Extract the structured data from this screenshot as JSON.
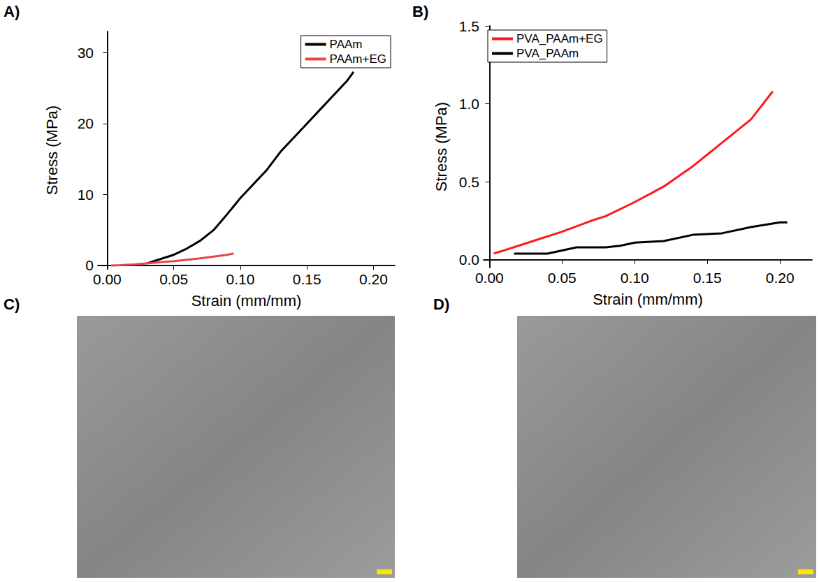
{
  "chart_data": [
    {
      "type": "line",
      "title": "A)",
      "x_label": "Strain (mm/mm)",
      "y_label": "Stress (MPa)",
      "xlim": [
        -0.007,
        0.216
      ],
      "ylim": [
        -0.5,
        33
      ],
      "xticks": [
        {
          "value": 0,
          "label": "0.00"
        },
        {
          "value": 0.05,
          "label": "0.05"
        },
        {
          "value": 0.1,
          "label": "0.10"
        },
        {
          "value": 0.15,
          "label": "0.15"
        },
        {
          "value": 0.2,
          "label": "0.20"
        }
      ],
      "yticks": [
        0,
        10,
        20,
        30
      ],
      "legend": "upper right",
      "series": [
        {
          "name": "PAAm",
          "color": "#000000",
          "x": [
            0.03,
            0.04,
            0.05,
            0.06,
            0.07,
            0.08,
            0.09,
            0.1,
            0.11,
            0.12,
            0.13,
            0.14,
            0.15,
            0.16,
            0.17,
            0.18,
            0.185
          ],
          "values": [
            0.3,
            0.9,
            1.5,
            2.4,
            3.5,
            5.0,
            7.2,
            9.5,
            11.5,
            13.5,
            16.0,
            18.0,
            20.0,
            22.0,
            24.0,
            26.0,
            27.3
          ]
        },
        {
          "name": "PAAm+EG",
          "color": "#e84545",
          "x": [
            0.003,
            0.01,
            0.02,
            0.03,
            0.04,
            0.05,
            0.06,
            0.07,
            0.08,
            0.09,
            0.095
          ],
          "values": [
            0.0,
            0.05,
            0.15,
            0.3,
            0.45,
            0.6,
            0.8,
            1.0,
            1.25,
            1.5,
            1.7
          ]
        }
      ]
    },
    {
      "type": "line",
      "title": "B)",
      "x_label": "Strain (mm/mm)",
      "y_label": "Stress (MPa)",
      "xlim": [
        -0.004,
        0.222
      ],
      "ylim": [
        -0.05,
        1.5
      ],
      "xticks": [
        {
          "value": 0,
          "label": "0.00"
        },
        {
          "value": 0.05,
          "label": "0.05"
        },
        {
          "value": 0.1,
          "label": "0.10"
        },
        {
          "value": 0.15,
          "label": "0.15"
        },
        {
          "value": 0.2,
          "label": "0.20"
        }
      ],
      "yticks": [
        {
          "value": 0,
          "label": "0.0"
        },
        {
          "value": 0.5,
          "label": "0.5"
        },
        {
          "value": 1,
          "label": "1.0"
        },
        {
          "value": 1.5,
          "label": "1.5"
        }
      ],
      "legend": "upper left",
      "series": [
        {
          "name": "PVA_PAAm+EG",
          "color": "#ff1a1a",
          "x": [
            0.003,
            0.01,
            0.02,
            0.03,
            0.05,
            0.07,
            0.08,
            0.1,
            0.12,
            0.14,
            0.16,
            0.18,
            0.195
          ],
          "values": [
            0.04,
            0.06,
            0.09,
            0.12,
            0.18,
            0.25,
            0.28,
            0.37,
            0.47,
            0.6,
            0.75,
            0.9,
            1.08
          ]
        },
        {
          "name": "PVA_PAAm",
          "color": "#000000",
          "x": [
            0.017,
            0.04,
            0.06,
            0.08,
            0.09,
            0.1,
            0.12,
            0.14,
            0.16,
            0.18,
            0.2,
            0.205
          ],
          "values": [
            0.04,
            0.04,
            0.08,
            0.08,
            0.09,
            0.11,
            0.12,
            0.16,
            0.17,
            0.21,
            0.24,
            0.24
          ]
        }
      ]
    },
    {
      "type": "image",
      "title": "C)"
    },
    {
      "type": "image",
      "title": "D)"
    }
  ]
}
